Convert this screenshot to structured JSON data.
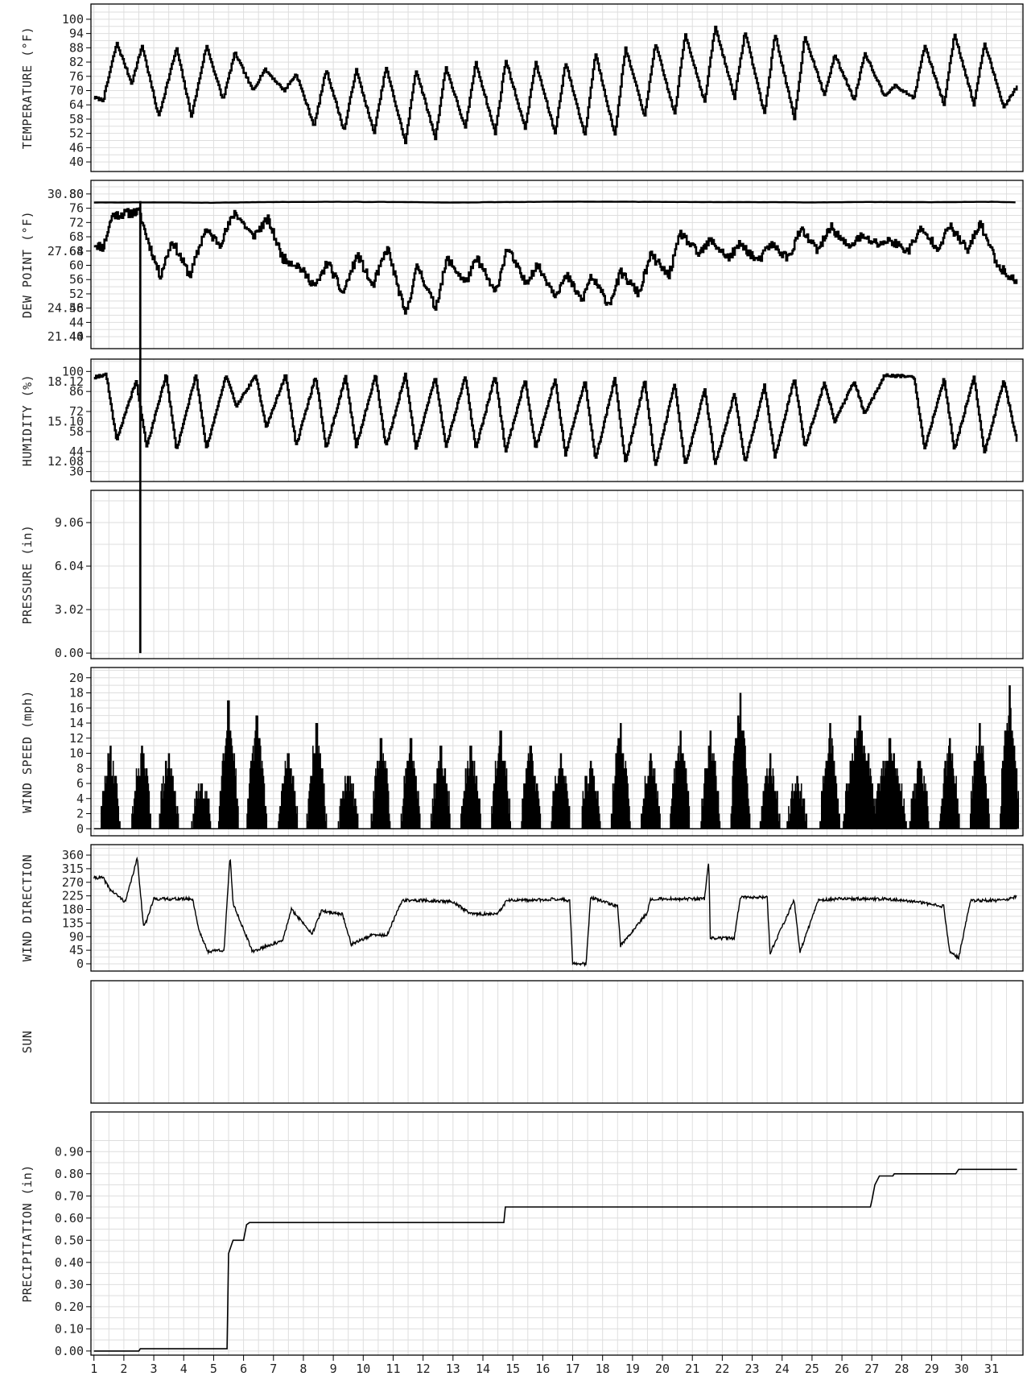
{
  "chart_data": [
    {
      "type": "line",
      "id": "temperature",
      "ylabel": "TEMPERATURE (°F)",
      "ylim": [
        38,
        102
      ],
      "yticks": [
        40,
        46,
        52,
        58,
        64,
        70,
        76,
        82,
        88,
        94,
        100
      ],
      "tick_labels": [
        "40",
        "46",
        "52",
        "58",
        "64",
        "70",
        "76",
        "82",
        "88",
        "94",
        "100"
      ],
      "x_unit": "day of month",
      "series": [
        {
          "x": [
            1,
            1.3,
            1.75,
            2.25,
            2.6,
            3.15,
            3.75,
            4.25,
            4.75,
            5.3,
            5.7,
            6.3,
            6.7,
            7.35,
            7.75,
            8.35,
            8.75,
            9.35,
            9.75,
            10.35,
            10.75,
            11.4,
            11.75,
            12.4,
            12.75,
            13.4,
            13.75,
            14.4,
            14.75,
            15.4,
            15.75,
            16.4,
            16.75,
            17.4,
            17.75,
            18.4,
            18.75,
            19.4,
            19.75,
            20.4,
            20.75,
            21.4,
            21.75,
            22.4,
            22.75,
            23.4,
            23.75,
            24.4,
            24.75,
            25.4,
            25.75,
            26.4,
            26.75,
            27.4,
            27.75,
            28.4,
            28.75,
            29.4,
            29.75,
            30.4,
            30.75,
            31.4,
            31.85
          ],
          "y": [
            67,
            66,
            90,
            73,
            89,
            59,
            88,
            59,
            89,
            66,
            86,
            70,
            79,
            70,
            77,
            55,
            79,
            53,
            79,
            52,
            80,
            48,
            79,
            50,
            80,
            54,
            82,
            52,
            83,
            54,
            82,
            52,
            82,
            51,
            86,
            51,
            88,
            59,
            90,
            60,
            94,
            65,
            97,
            67,
            95,
            60,
            94,
            58,
            93,
            68,
            85,
            66,
            86,
            68,
            72,
            67,
            89,
            64,
            94,
            64,
            90,
            63,
            72
          ]
        }
      ]
    },
    {
      "type": "line",
      "id": "dew-point",
      "ylabel": "DEW POINT (°F)",
      "ylim": [
        38,
        82
      ],
      "yticks": [
        40,
        44,
        48,
        52,
        56,
        60,
        64,
        68,
        72,
        76,
        80
      ],
      "tick_labels": [
        "40",
        "44",
        "48",
        "52",
        "56",
        "60",
        "64",
        "68",
        "72",
        "76",
        "80"
      ],
      "right_ticks": [
        21.44,
        24.56,
        27.68,
        30.8
      ],
      "right_tick_labels": [
        "21.44",
        "24.56",
        "27.68",
        "30.80"
      ],
      "x_unit": "day of month",
      "series": [
        {
          "x": [
            1,
            1.3,
            1.6,
            2.5,
            2.75,
            3.2,
            3.6,
            4.2,
            4.7,
            5.2,
            5.7,
            6.3,
            6.8,
            7.3,
            7.8,
            8.4,
            8.8,
            9.3,
            9.8,
            10.3,
            10.8,
            11.4,
            11.8,
            12.4,
            12.8,
            13.4,
            13.8,
            14.4,
            14.8,
            15.4,
            15.8,
            16.4,
            16.8,
            17.3,
            17.6,
            18.2,
            18.6,
            19.2,
            19.6,
            20.2,
            20.6,
            21.2,
            21.6,
            22.2,
            22.6,
            23.2,
            23.6,
            24.2,
            24.6,
            25.2,
            25.6,
            26.2,
            26.6,
            27.2,
            27.6,
            28.2,
            28.6,
            29.2,
            29.6,
            30.2,
            30.6,
            31.2,
            31.85
          ],
          "y": [
            66,
            65,
            74,
            75,
            68,
            57,
            67,
            57,
            70,
            66,
            75,
            68,
            73,
            62,
            60,
            54,
            61,
            52,
            63,
            54,
            65,
            46,
            60,
            48,
            62,
            55,
            62,
            52,
            65,
            55,
            60,
            52,
            57,
            50,
            57,
            49,
            58,
            52,
            63,
            57,
            69,
            63,
            67,
            62,
            66,
            61,
            66,
            62,
            70,
            64,
            71,
            65,
            68,
            66,
            67,
            64,
            70,
            65,
            71,
            64,
            72,
            60,
            55
          ]
        },
        {
          "x": [
            1,
            3,
            5,
            7,
            9,
            11,
            13,
            15,
            17,
            19,
            21,
            23,
            25,
            27,
            29,
            31,
            31.85
          ],
          "y": [
            30.33,
            30.34,
            30.32,
            30.36,
            30.37,
            30.36,
            30.33,
            30.36,
            30.38,
            30.37,
            30.36,
            30.35,
            30.34,
            30.36,
            30.35,
            30.37,
            30.34
          ]
        }
      ]
    },
    {
      "type": "line",
      "id": "humidity",
      "ylabel": "HUMIDITY (%)",
      "ylim": [
        27,
        103
      ],
      "yticks": [
        30,
        44,
        58,
        72,
        86,
        100
      ],
      "tick_labels": [
        "30",
        "44",
        "58",
        "72",
        "86",
        "100"
      ],
      "right_ticks": [
        12.08,
        15.1,
        18.12
      ],
      "right_tick_labels": [
        "12.08",
        "15.10",
        "18.12"
      ],
      "x_unit": "day of month",
      "series": [
        {
          "x": [
            1,
            1.4,
            1.75,
            2.4,
            2.75,
            3.4,
            3.75,
            4.4,
            4.75,
            5.4,
            5.75,
            6.4,
            6.75,
            7.4,
            7.75,
            8.4,
            8.75,
            9.4,
            9.75,
            10.4,
            10.75,
            11.4,
            11.75,
            12.4,
            12.75,
            13.4,
            13.75,
            14.4,
            14.75,
            15.4,
            15.75,
            16.4,
            16.75,
            17.4,
            17.75,
            18.4,
            18.75,
            19.4,
            19.75,
            20.4,
            20.75,
            21.4,
            21.75,
            22.4,
            22.75,
            23.4,
            23.75,
            24.4,
            24.75,
            25.4,
            25.75,
            26.4,
            26.75,
            27.4,
            27.75,
            28.4,
            28.75,
            29.4,
            29.75,
            30.4,
            30.75,
            31.4,
            31.85
          ],
          "y": [
            96,
            98,
            52,
            94,
            47,
            98,
            45,
            98,
            46,
            97,
            76,
            97,
            61,
            98,
            48,
            97,
            46,
            97,
            47,
            98,
            47,
            98,
            46,
            97,
            47,
            97,
            46,
            97,
            44,
            95,
            46,
            95,
            42,
            94,
            38,
            96,
            36,
            94,
            33,
            92,
            34,
            88,
            35,
            85,
            36,
            90,
            40,
            96,
            47,
            92,
            65,
            93,
            70,
            97,
            97,
            96,
            46,
            95,
            45,
            97,
            43,
            94,
            50
          ]
        }
      ]
    },
    {
      "type": "line",
      "id": "pressure",
      "ylabel": "PRESSURE (in)",
      "ylim": [
        -0.05,
        9.9
      ],
      "yticks": [
        0.0,
        3.02,
        6.04,
        9.06
      ],
      "tick_labels": [
        "0.00",
        "3.02",
        "6.04",
        "9.06"
      ],
      "x_unit": "day of month",
      "spike": {
        "x": 2.55,
        "y_low": 0,
        "y_high": 30.34
      }
    },
    {
      "type": "bar",
      "id": "wind-speed",
      "ylabel": "WIND SPEED (mph)",
      "ylim": [
        -0.4,
        20.4
      ],
      "yticks": [
        0,
        2,
        4,
        6,
        8,
        10,
        12,
        14,
        16,
        18,
        20
      ],
      "tick_labels": [
        "0",
        "2",
        "4",
        "6",
        "8",
        "10",
        "12",
        "14",
        "16",
        "18",
        "20"
      ],
      "x_unit": "day of month",
      "daily_peak_center": [
        1.55,
        2.6,
        3.5,
        4.6,
        5.5,
        6.45,
        7.5,
        8.45,
        9.5,
        10.6,
        11.6,
        12.6,
        13.6,
        14.6,
        15.6,
        16.6,
        17.6,
        18.6,
        19.6,
        20.6,
        21.6,
        22.6,
        23.6,
        24.5,
        25.6,
        26.6,
        27.6,
        28.6,
        29.6,
        30.6,
        31.6
      ],
      "daily_peak_value": [
        11,
        11,
        10,
        6,
        17,
        15,
        10,
        14,
        7,
        12,
        12,
        11,
        11,
        13,
        11,
        10,
        9,
        14,
        10,
        13,
        13,
        18,
        10,
        7,
        14,
        15,
        12,
        9,
        12,
        14,
        19
      ]
    },
    {
      "type": "line",
      "id": "wind-direction",
      "ylabel": "WIND DIRECTION",
      "ylim": [
        -8,
        368
      ],
      "yticks": [
        0,
        45,
        90,
        135,
        180,
        225,
        270,
        315,
        360
      ],
      "tick_labels": [
        "0",
        "45",
        "90",
        "135",
        "180",
        "225",
        "270",
        "315",
        "360"
      ],
      "x_unit": "day of month",
      "series": [
        {
          "x": [
            1,
            1.3,
            1.55,
            2.05,
            2.45,
            2.65,
            2.75,
            3.0,
            3.6,
            4.3,
            4.5,
            4.8,
            5.1,
            5.35,
            5.55,
            5.65,
            6.3,
            6.8,
            7.3,
            7.6,
            8.3,
            8.6,
            9.3,
            9.6,
            10.3,
            10.8,
            11.3,
            12.0,
            13.0,
            13.6,
            14.5,
            14.8,
            15.5,
            16.5,
            16.9,
            17.0,
            17.45,
            17.6,
            18.5,
            18.6,
            19.5,
            19.6,
            20.5,
            21.4,
            21.55,
            21.6,
            22.4,
            22.6,
            23.5,
            23.6,
            24.4,
            24.6,
            25.2,
            25.8,
            26.5,
            27.5,
            28.5,
            29.4,
            29.6,
            29.9,
            30.3,
            31.5,
            31.85
          ],
          "y": [
            285,
            285,
            245,
            205,
            350,
            130,
            140,
            215,
            215,
            215,
            115,
            40,
            45,
            45,
            360,
            200,
            40,
            60,
            75,
            180,
            100,
            175,
            165,
            65,
            95,
            95,
            210,
            210,
            205,
            165,
            165,
            210,
            210,
            215,
            210,
            0,
            0,
            220,
            190,
            60,
            170,
            215,
            215,
            215,
            340,
            85,
            85,
            220,
            220,
            35,
            210,
            40,
            210,
            215,
            215,
            215,
            205,
            190,
            40,
            20,
            210,
            210,
            225
          ]
        }
      ]
    },
    {
      "type": "line",
      "id": "sun",
      "ylabel": "SUN",
      "yticks": [],
      "tick_labels": [],
      "series": []
    },
    {
      "type": "line",
      "id": "precipitation",
      "ylabel": "PRECIPITATION (in)",
      "ylim": [
        -0.015,
        0.97
      ],
      "yticks": [
        0.0,
        0.1,
        0.2,
        0.3,
        0.4,
        0.5,
        0.6,
        0.7,
        0.8,
        0.9
      ],
      "tick_labels": [
        "0.00",
        "0.10",
        "0.20",
        "0.30",
        "0.40",
        "0.50",
        "0.60",
        "0.70",
        "0.80",
        "0.90"
      ],
      "x_unit": "day of month",
      "series": [
        {
          "x": [
            1,
            2.5,
            2.55,
            5.45,
            5.5,
            5.6,
            5.65,
            5.7,
            6.0,
            6.1,
            6.2,
            14.7,
            14.75,
            26.95,
            27.0,
            27.1,
            27.25,
            27.7,
            27.75,
            29.8,
            29.9,
            31.85
          ],
          "y": [
            0,
            0,
            0.01,
            0.01,
            0.44,
            0.48,
            0.5,
            0.5,
            0.5,
            0.57,
            0.58,
            0.58,
            0.65,
            0.65,
            0.68,
            0.75,
            0.79,
            0.79,
            0.8,
            0.8,
            0.82,
            0.82
          ]
        }
      ]
    }
  ],
  "x_axis": {
    "days": [
      "1",
      "2",
      "3",
      "4",
      "5",
      "6",
      "7",
      "8",
      "9",
      "10",
      "11",
      "12",
      "13",
      "14",
      "15",
      "16",
      "17",
      "18",
      "19",
      "20",
      "21",
      "22",
      "23",
      "24",
      "25",
      "26",
      "27",
      "28",
      "29",
      "30",
      "31"
    ],
    "xlim": [
      0.9,
      32.05
    ]
  },
  "grid": true
}
